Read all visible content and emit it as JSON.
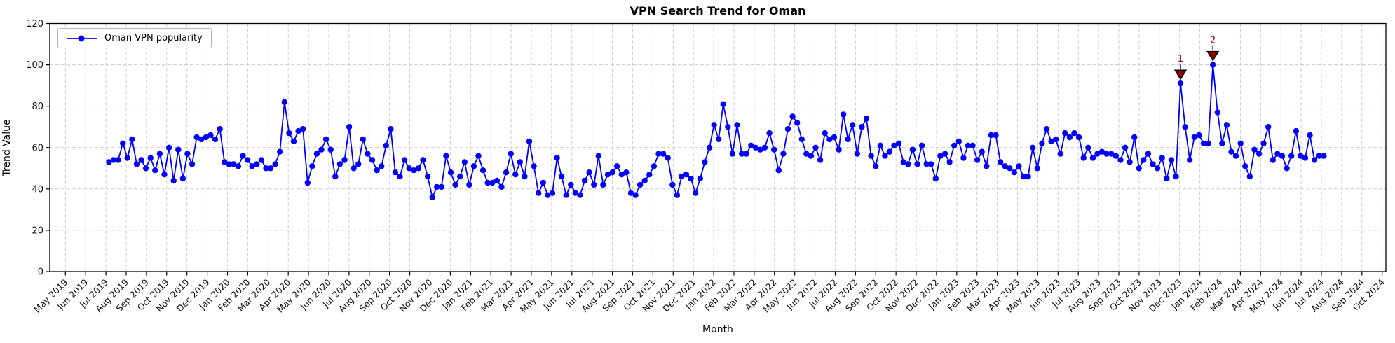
{
  "chart_data": {
    "type": "line",
    "title": "VPN Search Trend for Oman",
    "xlabel": "Month",
    "ylabel": "Trend Value",
    "ylim": [
      0,
      120
    ],
    "yticks": [
      0,
      20,
      40,
      60,
      80,
      100,
      120
    ],
    "grid": true,
    "grid_style": "dashed",
    "legend_position": "upper left",
    "x_tick_labels": [
      "May 2019",
      "Jun 2019",
      "Jul 2019",
      "Aug 2019",
      "Sep 2019",
      "Oct 2019",
      "Nov 2019",
      "Dec 2019",
      "Jan 2020",
      "Feb 2020",
      "Mar 2020",
      "Apr 2020",
      "May 2020",
      "Jun 2020",
      "Jul 2020",
      "Aug 2020",
      "Sep 2020",
      "Oct 2020",
      "Nov 2020",
      "Dec 2020",
      "Jan 2021",
      "Feb 2021",
      "Mar 2021",
      "Apr 2021",
      "May 2021",
      "Jun 2021",
      "Jul 2021",
      "Aug 2021",
      "Sep 2021",
      "Oct 2021",
      "Nov 2021",
      "Dec 2021",
      "Jan 2022",
      "Feb 2022",
      "Mar 2022",
      "Apr 2022",
      "May 2022",
      "Jun 2022",
      "Jul 2022",
      "Aug 2022",
      "Sep 2022",
      "Oct 2022",
      "Nov 2022",
      "Dec 2022",
      "Jan 2023",
      "Feb 2023",
      "Mar 2023",
      "Apr 2023",
      "May 2023",
      "Jun 2023",
      "Jul 2023",
      "Aug 2023",
      "Sep 2023",
      "Oct 2023",
      "Nov 2023",
      "Dec 2023",
      "Jan 2024",
      "Feb 2024",
      "Mar 2024",
      "Apr 2024",
      "May 2024",
      "Jun 2024",
      "Jul 2024",
      "Aug 2024",
      "Sep 2024",
      "Oct 2024"
    ],
    "series": [
      {
        "name": "Oman VPN popularity",
        "color": "#0000ff",
        "marker": "circle",
        "x_unit": "weekly samples",
        "x_offset_months": 2.15,
        "x_step_months": 0.228,
        "values": [
          53,
          54,
          54,
          62,
          55,
          64,
          52,
          54,
          50,
          55,
          49,
          57,
          47,
          60,
          44,
          59,
          45,
          57,
          52,
          65,
          64,
          65,
          66,
          64,
          69,
          53,
          52,
          52,
          51,
          56,
          54,
          51,
          52,
          54,
          50,
          50,
          52,
          58,
          82,
          67,
          63,
          68,
          69,
          43,
          51,
          57,
          59,
          64,
          59,
          46,
          52,
          54,
          70,
          50,
          52,
          64,
          57,
          54,
          49,
          51,
          61,
          69,
          48,
          46,
          54,
          50,
          49,
          50,
          54,
          46,
          36,
          41,
          41,
          56,
          48,
          42,
          46,
          53,
          42,
          51,
          56,
          49,
          43,
          43,
          44,
          41,
          48,
          57,
          47,
          53,
          46,
          63,
          51,
          38,
          43,
          37,
          38,
          55,
          46,
          37,
          42,
          38,
          37,
          44,
          48,
          42,
          56,
          42,
          47,
          48,
          51,
          47,
          48,
          38,
          37,
          42,
          44,
          47,
          51,
          57,
          57,
          55,
          42,
          37,
          46,
          47,
          45,
          38,
          45,
          53,
          60,
          71,
          64,
          81,
          70,
          57,
          71,
          57,
          57,
          61,
          60,
          59,
          60,
          67,
          59,
          49,
          57,
          69,
          75,
          72,
          64,
          57,
          56,
          60,
          54,
          67,
          64,
          65,
          59,
          76,
          64,
          71,
          57,
          70,
          74,
          56,
          51,
          61,
          56,
          58,
          61,
          62,
          53,
          52,
          59,
          52,
          61,
          52,
          52,
          45,
          56,
          57,
          53,
          61,
          63,
          55,
          61,
          61,
          54,
          58,
          51,
          66,
          66,
          53,
          51,
          50,
          48,
          51,
          46,
          46,
          60,
          50,
          62,
          69,
          63,
          64,
          57,
          67,
          65,
          67,
          65,
          55,
          60,
          55,
          57,
          58,
          57,
          57,
          56,
          54,
          60,
          53,
          65,
          50,
          54,
          57,
          52,
          50,
          55,
          45,
          54,
          46,
          91,
          70,
          54,
          65,
          66,
          62,
          62,
          100,
          77,
          62,
          71,
          58,
          56,
          62,
          51,
          46,
          59,
          57,
          62,
          70,
          54,
          57,
          56,
          50,
          56,
          68,
          56,
          55,
          66,
          54,
          56,
          56
        ]
      }
    ],
    "annotations": [
      {
        "label": "1",
        "point_index": 232,
        "value": 91,
        "near_tick": "Dec 2023",
        "color": "#8b0000",
        "marker": "down-triangle"
      },
      {
        "label": "2",
        "point_index": 239,
        "value": 100,
        "near_tick": "Jan 2024",
        "color": "#8b0000",
        "marker": "down-triangle"
      }
    ],
    "colors": {
      "line": "#0000ff",
      "annotation": "#8b0000",
      "grid": "#cccccc",
      "axes": "#000000",
      "background": "#ffffff"
    }
  }
}
